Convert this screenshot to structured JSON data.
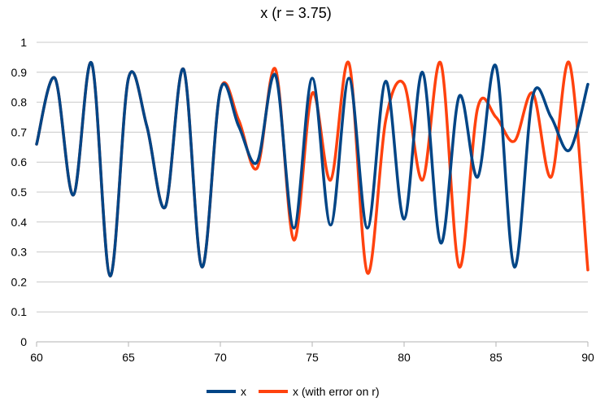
{
  "chart_data": {
    "type": "line",
    "title": "x (r = 3.75)",
    "xlim": [
      60,
      90
    ],
    "ylim": [
      0,
      1
    ],
    "x_ticks": [
      60,
      65,
      70,
      75,
      80,
      85,
      90
    ],
    "y_ticks": [
      0,
      0.1,
      0.2,
      0.3,
      0.4,
      0.5,
      0.6,
      0.7,
      0.8,
      0.9,
      1
    ],
    "grid": true,
    "legend_position": "bottom",
    "colors": {
      "x": "#004586",
      "x_err": "#ff420e",
      "grid": "#c8c8c8",
      "axis": "#b3b3b3"
    },
    "x": [
      60,
      61,
      62,
      63,
      64,
      65,
      66,
      67,
      68,
      69,
      70,
      71,
      72,
      73,
      74,
      75,
      76,
      77,
      78,
      79,
      80,
      81,
      82,
      83,
      84,
      85,
      86,
      87,
      88,
      89,
      90
    ],
    "series": [
      {
        "name": "x",
        "values": [
          0.66,
          0.88,
          0.49,
          0.93,
          0.22,
          0.88,
          0.72,
          0.45,
          0.91,
          0.25,
          0.84,
          0.72,
          0.6,
          0.89,
          0.38,
          0.88,
          0.39,
          0.88,
          0.38,
          0.87,
          0.41,
          0.9,
          0.33,
          0.82,
          0.55,
          0.92,
          0.25,
          0.82,
          0.75,
          0.64,
          0.86
        ]
      },
      {
        "name": "x (with error on r)",
        "values": [
          0.66,
          0.88,
          0.49,
          0.93,
          0.22,
          0.88,
          0.72,
          0.45,
          0.91,
          0.25,
          0.84,
          0.74,
          0.58,
          0.91,
          0.34,
          0.83,
          0.54,
          0.93,
          0.23,
          0.74,
          0.86,
          0.54,
          0.93,
          0.25,
          0.78,
          0.75,
          0.67,
          0.83,
          0.55,
          0.93,
          0.24
        ]
      }
    ]
  }
}
